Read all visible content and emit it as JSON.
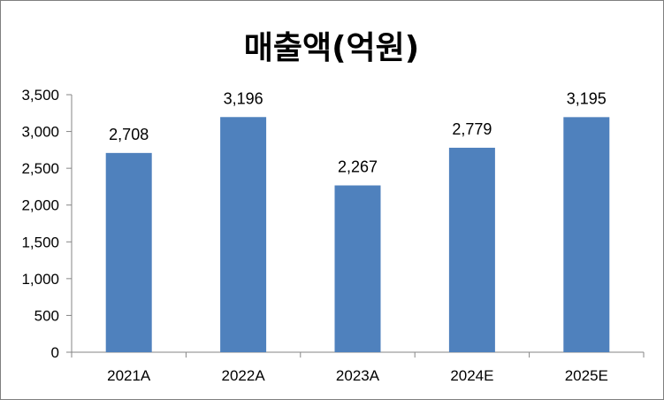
{
  "chart_data": {
    "type": "bar",
    "title": "매출액(억원)",
    "xlabel": "",
    "ylabel": "",
    "categories": [
      "2021A",
      "2022A",
      "2023A",
      "2024E",
      "2025E"
    ],
    "values": [
      2708,
      3196,
      2267,
      2779,
      3195
    ],
    "value_labels": [
      "2,708",
      "3,196",
      "2,267",
      "2,779",
      "3,195"
    ],
    "ylim": [
      0,
      3500
    ],
    "yticks": [
      0,
      500,
      1000,
      1500,
      2000,
      2500,
      3000,
      3500
    ],
    "ytick_labels": [
      "0",
      "500",
      "1,000",
      "1,500",
      "2,000",
      "2,500",
      "3,000",
      "3,500"
    ],
    "grid": false,
    "legend": "none",
    "bar_color": "#4f81bd"
  }
}
